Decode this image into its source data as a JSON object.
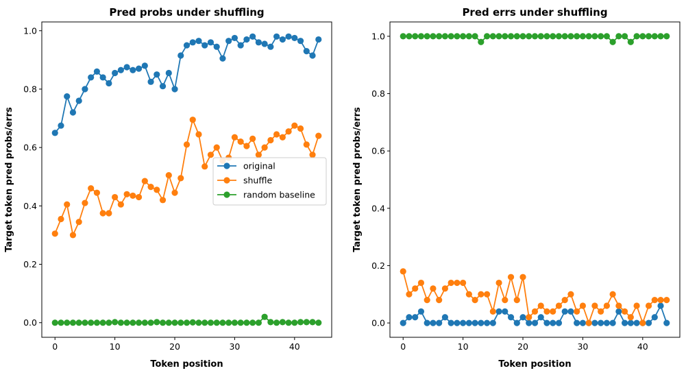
{
  "chart_data": [
    {
      "type": "line",
      "title": "Pred probs under shuffling",
      "xlabel": "Token position",
      "ylabel": "Target token pred probs/errs",
      "xlim": [
        -2.2,
        46.2
      ],
      "ylim": [
        -0.05,
        1.03
      ],
      "xticks": [
        0,
        10,
        20,
        30,
        40
      ],
      "xtick_labels": [
        "0",
        "10",
        "20",
        "30",
        "40"
      ],
      "yticks": [
        0.0,
        0.2,
        0.4,
        0.6,
        0.8,
        1.0
      ],
      "ytick_labels": [
        "0.0",
        "0.2",
        "0.4",
        "0.6",
        "0.8",
        "1.0"
      ],
      "grid": false,
      "legend": {
        "placement": "center-right",
        "entries": [
          "original",
          "shuffle",
          "random baseline"
        ]
      },
      "x": [
        0,
        1,
        2,
        3,
        4,
        5,
        6,
        7,
        8,
        9,
        10,
        11,
        12,
        13,
        14,
        15,
        16,
        17,
        18,
        19,
        20,
        21,
        22,
        23,
        24,
        25,
        26,
        27,
        28,
        29,
        30,
        31,
        32,
        33,
        34,
        35,
        36,
        37,
        38,
        39,
        40,
        41,
        42,
        43,
        44
      ],
      "series": [
        {
          "name": "original",
          "color": "#1f77b4",
          "values": [
            0.65,
            0.675,
            0.775,
            0.72,
            0.76,
            0.8,
            0.84,
            0.86,
            0.84,
            0.82,
            0.855,
            0.865,
            0.875,
            0.865,
            0.87,
            0.88,
            0.825,
            0.85,
            0.81,
            0.855,
            0.8,
            0.915,
            0.95,
            0.96,
            0.965,
            0.95,
            0.96,
            0.945,
            0.905,
            0.965,
            0.975,
            0.95,
            0.97,
            0.98,
            0.96,
            0.955,
            0.945,
            0.98,
            0.97,
            0.98,
            0.975,
            0.965,
            0.93,
            0.915,
            0.97
          ]
        },
        {
          "name": "shuffle",
          "color": "#ff7f0e",
          "values": [
            0.305,
            0.355,
            0.405,
            0.3,
            0.345,
            0.41,
            0.46,
            0.445,
            0.375,
            0.375,
            0.43,
            0.405,
            0.44,
            0.435,
            0.43,
            0.485,
            0.465,
            0.455,
            0.42,
            0.505,
            0.445,
            0.495,
            0.61,
            0.695,
            0.645,
            0.535,
            0.575,
            0.6,
            0.555,
            0.565,
            0.635,
            0.62,
            0.605,
            0.63,
            0.575,
            0.6,
            0.625,
            0.645,
            0.635,
            0.655,
            0.675,
            0.665,
            0.61,
            0.575,
            0.64
          ]
        },
        {
          "name": "random baseline",
          "color": "#2ca02c",
          "values": [
            0,
            0,
            0,
            0,
            0,
            0,
            0,
            0,
            0,
            0,
            0.002,
            0,
            0,
            0,
            0,
            0,
            0,
            0.002,
            0,
            0,
            0,
            0,
            0,
            0.001,
            0,
            0,
            0,
            0,
            0,
            0,
            0,
            0,
            0,
            0,
            0,
            0.02,
            0.002,
            0,
            0.002,
            0,
            0,
            0.002,
            0.002,
            0.002,
            0
          ]
        }
      ]
    },
    {
      "type": "line",
      "title": "Pred errs under shuffling",
      "xlabel": "Token position",
      "ylabel": "Target token pred probs/errs",
      "xlim": [
        -2.2,
        46.2
      ],
      "ylim": [
        -0.05,
        1.05
      ],
      "xticks": [
        0,
        10,
        20,
        30,
        40
      ],
      "xtick_labels": [
        "0",
        "10",
        "20",
        "30",
        "40"
      ],
      "yticks": [
        0.0,
        0.2,
        0.4,
        0.6,
        0.8,
        1.0
      ],
      "ytick_labels": [
        "0.0",
        "0.2",
        "0.4",
        "0.6",
        "0.8",
        "1.0"
      ],
      "grid": false,
      "x": [
        0,
        1,
        2,
        3,
        4,
        5,
        6,
        7,
        8,
        9,
        10,
        11,
        12,
        13,
        14,
        15,
        16,
        17,
        18,
        19,
        20,
        21,
        22,
        23,
        24,
        25,
        26,
        27,
        28,
        29,
        30,
        31,
        32,
        33,
        34,
        35,
        36,
        37,
        38,
        39,
        40,
        41,
        42,
        43,
        44
      ],
      "series": [
        {
          "name": "original",
          "color": "#1f77b4",
          "values": [
            0,
            0.02,
            0.02,
            0.04,
            0,
            0,
            0,
            0.02,
            0,
            0,
            0,
            0,
            0,
            0,
            0,
            0,
            0.04,
            0.04,
            0.02,
            0,
            0.02,
            0,
            0,
            0.02,
            0,
            0,
            0,
            0.04,
            0.04,
            0,
            0,
            0,
            0,
            0,
            0,
            0,
            0.04,
            0,
            0,
            0,
            0,
            0,
            0.02,
            0.06,
            0
          ]
        },
        {
          "name": "shuffle",
          "color": "#ff7f0e",
          "values": [
            0.18,
            0.1,
            0.12,
            0.14,
            0.08,
            0.12,
            0.08,
            0.12,
            0.14,
            0.14,
            0.14,
            0.1,
            0.08,
            0.1,
            0.1,
            0.04,
            0.14,
            0.08,
            0.16,
            0.08,
            0.16,
            0.02,
            0.04,
            0.06,
            0.04,
            0.04,
            0.06,
            0.08,
            0.1,
            0.04,
            0.06,
            0,
            0.06,
            0.04,
            0.06,
            0.1,
            0.06,
            0.04,
            0.02,
            0.06,
            0,
            0.06,
            0.08,
            0.08,
            0.08
          ]
        },
        {
          "name": "random baseline",
          "color": "#2ca02c",
          "values": [
            1,
            1,
            1,
            1,
            1,
            1,
            1,
            1,
            1,
            1,
            1,
            1,
            1,
            0.98,
            1,
            1,
            1,
            1,
            1,
            1,
            1,
            1,
            1,
            1,
            1,
            1,
            1,
            1,
            1,
            1,
            1,
            1,
            1,
            1,
            1,
            0.98,
            1,
            1,
            0.98,
            1,
            1,
            1,
            1,
            1,
            1
          ]
        }
      ]
    }
  ]
}
